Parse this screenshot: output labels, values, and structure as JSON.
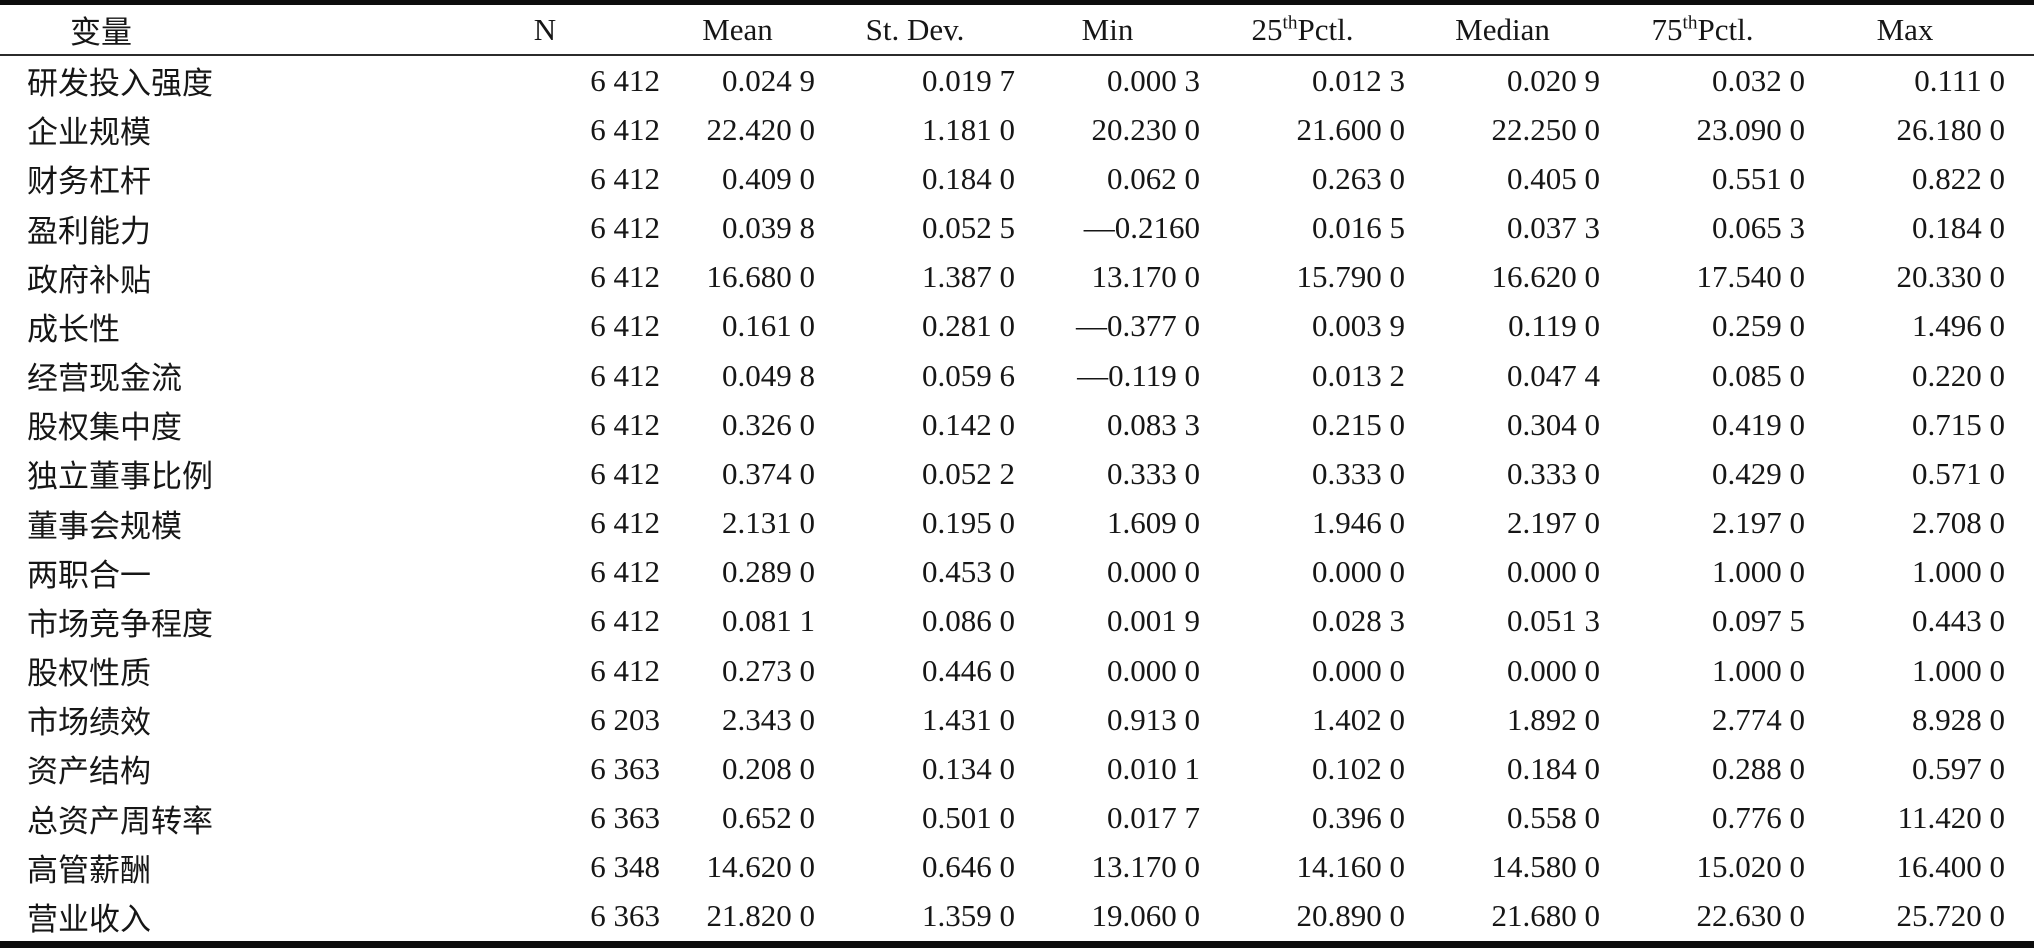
{
  "table": {
    "headers": [
      {
        "id": "variable",
        "label": "变量"
      },
      {
        "id": "n",
        "label": "N"
      },
      {
        "id": "mean",
        "label": "Mean"
      },
      {
        "id": "stdev",
        "label": "St. Dev."
      },
      {
        "id": "min",
        "label": "Min"
      },
      {
        "id": "pctl25",
        "pre": "25",
        "sup": "th",
        "post": "Pctl."
      },
      {
        "id": "median",
        "label": "Median"
      },
      {
        "id": "pctl75",
        "pre": "75",
        "sup": "th",
        "post": "Pctl."
      },
      {
        "id": "max",
        "label": "Max"
      }
    ],
    "rows": [
      {
        "variable": "研发投入强度",
        "values": [
          "6 412",
          "0.024 9",
          "0.019 7",
          "0.000 3",
          "0.012 3",
          "0.020 9",
          "0.032 0",
          "0.111 0"
        ]
      },
      {
        "variable": "企业规模",
        "values": [
          "6 412",
          "22.420 0",
          "1.181 0",
          "20.230 0",
          "21.600 0",
          "22.250 0",
          "23.090 0",
          "26.180 0"
        ]
      },
      {
        "variable": "财务杠杆",
        "values": [
          "6 412",
          "0.409 0",
          "0.184 0",
          "0.062 0",
          "0.263 0",
          "0.405 0",
          "0.551 0",
          "0.822 0"
        ]
      },
      {
        "variable": "盈利能力",
        "values": [
          "6 412",
          "0.039 8",
          "0.052 5",
          "—0.2160",
          "0.016 5",
          "0.037 3",
          "0.065 3",
          "0.184 0"
        ]
      },
      {
        "variable": "政府补贴",
        "values": [
          "6 412",
          "16.680 0",
          "1.387 0",
          "13.170 0",
          "15.790 0",
          "16.620 0",
          "17.540 0",
          "20.330 0"
        ]
      },
      {
        "variable": "成长性",
        "values": [
          "6 412",
          "0.161 0",
          "0.281 0",
          "—0.377 0",
          "0.003 9",
          "0.119 0",
          "0.259 0",
          "1.496 0"
        ]
      },
      {
        "variable": "经营现金流",
        "values": [
          "6 412",
          "0.049 8",
          "0.059 6",
          "—0.119 0",
          "0.013 2",
          "0.047 4",
          "0.085 0",
          "0.220 0"
        ]
      },
      {
        "variable": "股权集中度",
        "values": [
          "6 412",
          "0.326 0",
          "0.142 0",
          "0.083 3",
          "0.215 0",
          "0.304 0",
          "0.419 0",
          "0.715 0"
        ]
      },
      {
        "variable": "独立董事比例",
        "values": [
          "6 412",
          "0.374 0",
          "0.052 2",
          "0.333 0",
          "0.333 0",
          "0.333 0",
          "0.429 0",
          "0.571 0"
        ]
      },
      {
        "variable": "董事会规模",
        "values": [
          "6 412",
          "2.131 0",
          "0.195 0",
          "1.609 0",
          "1.946 0",
          "2.197 0",
          "2.197 0",
          "2.708 0"
        ]
      },
      {
        "variable": "两职合一",
        "values": [
          "6 412",
          "0.289 0",
          "0.453 0",
          "0.000 0",
          "0.000 0",
          "0.000 0",
          "1.000 0",
          "1.000 0"
        ]
      },
      {
        "variable": "市场竞争程度",
        "values": [
          "6 412",
          "0.081 1",
          "0.086 0",
          "0.001 9",
          "0.028 3",
          "0.051 3",
          "0.097 5",
          "0.443 0"
        ]
      },
      {
        "variable": "股权性质",
        "values": [
          "6 412",
          "0.273 0",
          "0.446 0",
          "0.000 0",
          "0.000 0",
          "0.000 0",
          "1.000 0",
          "1.000 0"
        ]
      },
      {
        "variable": "市场绩效",
        "values": [
          "6 203",
          "2.343 0",
          "1.431 0",
          "0.913 0",
          "1.402 0",
          "1.892 0",
          "2.774 0",
          "8.928 0"
        ]
      },
      {
        "variable": "资产结构",
        "values": [
          "6 363",
          "0.208 0",
          "0.134 0",
          "0.010 1",
          "0.102 0",
          "0.184 0",
          "0.288 0",
          "0.597 0"
        ]
      },
      {
        "variable": "总资产周转率",
        "values": [
          "6 363",
          "0.652 0",
          "0.501 0",
          "0.017 7",
          "0.396 0",
          "0.558 0",
          "0.776 0",
          "11.420 0"
        ]
      },
      {
        "variable": "高管薪酬",
        "values": [
          "6 348",
          "14.620 0",
          "0.646 0",
          "13.170 0",
          "14.160 0",
          "14.580 0",
          "15.020 0",
          "16.400 0"
        ]
      },
      {
        "variable": "营业收入",
        "values": [
          "6 363",
          "21.820 0",
          "1.359 0",
          "19.060 0",
          "20.890 0",
          "21.680 0",
          "22.630 0",
          "25.720 0"
        ]
      }
    ],
    "colors": {
      "text": "#161616",
      "rule_heavy": "#0d0d0d",
      "rule_light": "#2b2b2b",
      "background": "#ffffff"
    }
  }
}
